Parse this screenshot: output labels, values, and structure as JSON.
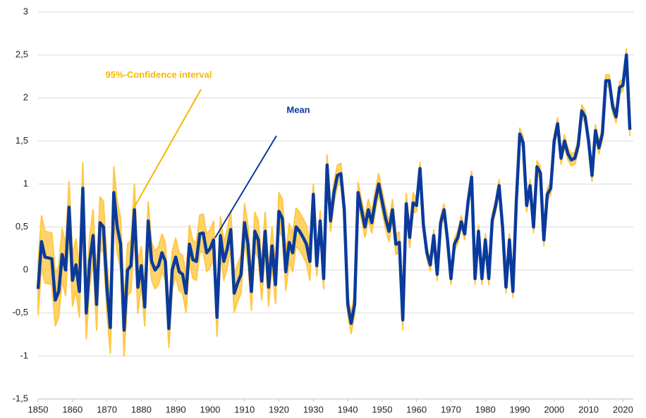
{
  "chart_data": {
    "type": "line",
    "x": [
      1850,
      1851,
      1852,
      1853,
      1854,
      1855,
      1856,
      1857,
      1858,
      1859,
      1860,
      1861,
      1862,
      1863,
      1864,
      1865,
      1866,
      1867,
      1868,
      1869,
      1870,
      1871,
      1872,
      1873,
      1874,
      1875,
      1876,
      1877,
      1878,
      1879,
      1880,
      1881,
      1882,
      1883,
      1884,
      1885,
      1886,
      1887,
      1888,
      1889,
      1890,
      1891,
      1892,
      1893,
      1894,
      1895,
      1896,
      1897,
      1898,
      1899,
      1900,
      1901,
      1902,
      1903,
      1904,
      1905,
      1906,
      1907,
      1908,
      1909,
      1910,
      1911,
      1912,
      1913,
      1914,
      1915,
      1916,
      1917,
      1918,
      1919,
      1920,
      1921,
      1922,
      1923,
      1924,
      1925,
      1926,
      1927,
      1928,
      1929,
      1930,
      1931,
      1932,
      1933,
      1934,
      1935,
      1936,
      1937,
      1938,
      1939,
      1940,
      1941,
      1942,
      1943,
      1944,
      1945,
      1946,
      1947,
      1948,
      1949,
      1950,
      1951,
      1952,
      1953,
      1954,
      1955,
      1956,
      1957,
      1958,
      1959,
      1960,
      1961,
      1962,
      1963,
      1964,
      1965,
      1966,
      1967,
      1968,
      1969,
      1970,
      1971,
      1972,
      1973,
      1974,
      1975,
      1976,
      1977,
      1978,
      1979,
      1980,
      1981,
      1982,
      1983,
      1984,
      1985,
      1986,
      1987,
      1988,
      1989,
      1990,
      1991,
      1992,
      1993,
      1994,
      1995,
      1996,
      1997,
      1998,
      1999,
      2000,
      2001,
      2002,
      2003,
      2004,
      2005,
      2006,
      2007,
      2008,
      2009,
      2010,
      2011,
      2012,
      2013,
      2014,
      2015,
      2016,
      2017,
      2018,
      2019,
      2020,
      2021,
      2022
    ],
    "series": [
      {
        "name": "Mean",
        "color": "#0a3a9c",
        "values": [
          -0.22,
          0.33,
          0.15,
          0.14,
          0.13,
          -0.35,
          -0.25,
          0.18,
          0.0,
          0.73,
          -0.12,
          0.06,
          -0.25,
          0.95,
          -0.5,
          0.1,
          0.4,
          -0.4,
          0.55,
          0.5,
          -0.2,
          -0.67,
          0.9,
          0.5,
          0.3,
          -0.7,
          0.0,
          0.05,
          0.7,
          -0.2,
          0.05,
          -0.43,
          0.57,
          0.1,
          0.0,
          0.05,
          0.2,
          0.1,
          -0.68,
          0.0,
          0.15,
          -0.02,
          -0.05,
          -0.27,
          0.3,
          0.12,
          0.1,
          0.42,
          0.43,
          0.2,
          0.25,
          0.35,
          -0.55,
          0.4,
          0.1,
          0.25,
          0.47,
          -0.27,
          -0.15,
          -0.05,
          0.55,
          0.3,
          -0.25,
          0.45,
          0.35,
          -0.13,
          0.45,
          -0.2,
          0.28,
          -0.17,
          0.68,
          0.6,
          -0.02,
          0.32,
          0.2,
          0.5,
          0.45,
          0.38,
          0.3,
          0.1,
          0.88,
          0.05,
          0.57,
          -0.1,
          1.22,
          0.57,
          0.9,
          1.1,
          1.12,
          0.7,
          -0.4,
          -0.62,
          -0.4,
          0.9,
          0.7,
          0.5,
          0.7,
          0.55,
          0.8,
          1.0,
          0.8,
          0.6,
          0.45,
          0.7,
          0.3,
          0.32,
          -0.58,
          0.77,
          0.38,
          0.78,
          0.75,
          1.18,
          0.52,
          0.2,
          0.06,
          0.4,
          -0.05,
          0.55,
          0.7,
          0.35,
          -0.1,
          0.3,
          0.38,
          0.56,
          0.42,
          0.8,
          1.08,
          -0.1,
          0.45,
          -0.1,
          0.35,
          -0.1,
          0.58,
          0.75,
          0.98,
          0.5,
          -0.2,
          0.35,
          -0.25,
          0.8,
          1.58,
          1.48,
          0.75,
          0.98,
          0.5,
          1.2,
          1.13,
          0.35,
          0.88,
          0.95,
          1.5,
          1.7,
          1.3,
          1.5,
          1.35,
          1.28,
          1.3,
          1.45,
          1.85,
          1.78,
          1.5,
          1.1,
          1.62,
          1.42,
          1.58,
          2.2,
          2.2,
          1.9,
          1.78,
          2.12,
          2.15,
          2.5,
          1.63
        ]
      }
    ],
    "band": {
      "name": "95%-Confidence interval",
      "color": "#ffc845",
      "errors": [
        0.3,
        0.3,
        0.3,
        0.3,
        0.3,
        0.3,
        0.3,
        0.3,
        0.3,
        0.3,
        0.3,
        0.3,
        0.3,
        0.3,
        0.3,
        0.3,
        0.3,
        0.3,
        0.3,
        0.3,
        0.3,
        0.3,
        0.3,
        0.3,
        0.3,
        0.3,
        0.3,
        0.3,
        0.3,
        0.3,
        0.22,
        0.22,
        0.22,
        0.22,
        0.22,
        0.22,
        0.22,
        0.22,
        0.22,
        0.22,
        0.22,
        0.22,
        0.22,
        0.22,
        0.22,
        0.22,
        0.22,
        0.22,
        0.22,
        0.22,
        0.22,
        0.22,
        0.22,
        0.22,
        0.22,
        0.22,
        0.22,
        0.22,
        0.22,
        0.22,
        0.22,
        0.22,
        0.22,
        0.22,
        0.22,
        0.22,
        0.22,
        0.22,
        0.22,
        0.22,
        0.22,
        0.22,
        0.22,
        0.22,
        0.22,
        0.22,
        0.22,
        0.22,
        0.22,
        0.22,
        0.12,
        0.12,
        0.12,
        0.12,
        0.12,
        0.12,
        0.12,
        0.12,
        0.12,
        0.12,
        0.12,
        0.12,
        0.12,
        0.12,
        0.12,
        0.12,
        0.12,
        0.12,
        0.12,
        0.12,
        0.12,
        0.12,
        0.12,
        0.12,
        0.12,
        0.12,
        0.12,
        0.12,
        0.12,
        0.12,
        0.07,
        0.07,
        0.07,
        0.07,
        0.07,
        0.07,
        0.07,
        0.07,
        0.07,
        0.07,
        0.07,
        0.07,
        0.07,
        0.07,
        0.07,
        0.07,
        0.07,
        0.07,
        0.07,
        0.07,
        0.07,
        0.07,
        0.07,
        0.07,
        0.07,
        0.07,
        0.07,
        0.07,
        0.07,
        0.07,
        0.07,
        0.07,
        0.07,
        0.07,
        0.07,
        0.07,
        0.07,
        0.07,
        0.07,
        0.07,
        0.07,
        0.07,
        0.07,
        0.07,
        0.07,
        0.07,
        0.07,
        0.07,
        0.07,
        0.07,
        0.07,
        0.07,
        0.07,
        0.07,
        0.07,
        0.07,
        0.07,
        0.07,
        0.07,
        0.07,
        0.07,
        0.07,
        0.07
      ]
    },
    "xlim": [
      1850,
      2023
    ],
    "ylim": [
      -1.5,
      3
    ],
    "xticks": [
      1850,
      1860,
      1870,
      1880,
      1890,
      1900,
      1910,
      1920,
      1930,
      1940,
      1950,
      1960,
      1970,
      1980,
      1990,
      2000,
      2010,
      2020
    ],
    "yticks": [
      {
        "value": -1.5,
        "label": "-1,5"
      },
      -1,
      {
        "value": -0.5,
        "label": "-0,5"
      },
      0,
      {
        "value": 0.5,
        "label": "0,5"
      },
      1,
      {
        "value": 1.5,
        "label": "1,5"
      },
      2,
      {
        "value": 2.5,
        "label": "2,5"
      },
      3
    ],
    "grid": true
  }
}
